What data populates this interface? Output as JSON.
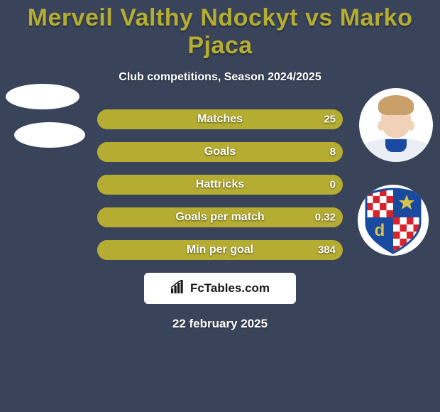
{
  "background_color": "#39445a",
  "title": {
    "text": "Merveil Valthy Ndockyt vs Marko Pjaca",
    "color": "#b5ad32",
    "fontsize": 34
  },
  "subtitle": {
    "text": "Club competitions, Season 2024/2025",
    "color": "#ffffff",
    "fontsize": 16
  },
  "bar_style": {
    "track_color": "#b5ad32",
    "track_width": 346,
    "track_height": 28,
    "border_radius": 14,
    "label_color": "#ffffff",
    "value_color": "#ffffff",
    "left_fill_color": "#b5ad32",
    "right_fill_color": "#b5ad32",
    "label_fontsize": 16,
    "value_fontsize": 15
  },
  "stats": [
    {
      "label": "Matches",
      "left_value": "",
      "right_value": "25",
      "left_pct": 0,
      "right_pct": 100
    },
    {
      "label": "Goals",
      "left_value": "",
      "right_value": "8",
      "left_pct": 0,
      "right_pct": 100
    },
    {
      "label": "Hattricks",
      "left_value": "",
      "right_value": "0",
      "left_pct": 0,
      "right_pct": 100
    },
    {
      "label": "Goals per match",
      "left_value": "",
      "right_value": "0.32",
      "left_pct": 0,
      "right_pct": 100
    },
    {
      "label": "Min per goal",
      "left_value": "",
      "right_value": "384",
      "left_pct": 0,
      "right_pct": 100
    }
  ],
  "logo": {
    "box_bg": "#ffffff",
    "text": "FcTables.com",
    "text_color": "#1a1a1a",
    "icon_color": "#1a1a1a"
  },
  "date": {
    "text": "22 february 2025",
    "color": "#ffffff",
    "fontsize": 17
  },
  "avatars": {
    "left1_bg": "#ffffff",
    "left2_bg": "#ffffff",
    "right1_bg": "#ffffff",
    "right2_bg": "#ffffff",
    "club_logo": {
      "red": "#d8232a",
      "white": "#ffffff",
      "blue": "#1a4aa0",
      "gold": "#d7c24a"
    }
  }
}
